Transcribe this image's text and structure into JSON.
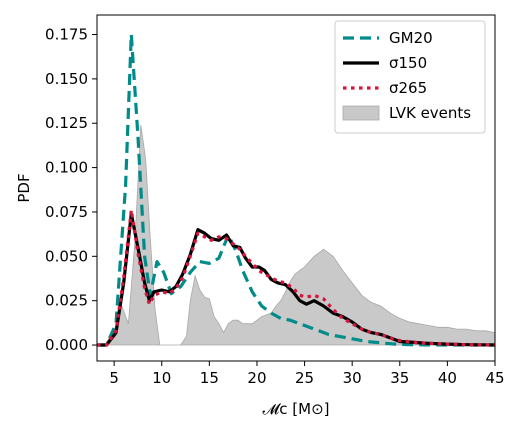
{
  "chart_data": {
    "type": "line",
    "xlabel": "𝓜c [M⊙]",
    "ylabel": "PDF",
    "xlim": [
      3.2,
      45
    ],
    "ylim": [
      -0.009,
      0.186
    ],
    "xticks": [
      5,
      10,
      15,
      20,
      25,
      30,
      35,
      40,
      45
    ],
    "yticks": [
      0.0,
      0.025,
      0.05,
      0.075,
      0.1,
      0.125,
      0.15,
      0.175
    ],
    "grid": false,
    "legend": {
      "placement": "top-right"
    },
    "series": [
      {
        "name": "GM20",
        "kind": "line",
        "style": "dashed",
        "color": "#008b8b",
        "x": [
          3.2,
          4.2,
          5.2,
          6.2,
          6.8,
          7.5,
          8.2,
          8.8,
          9.5,
          10.2,
          11.0,
          12.0,
          13.0,
          14.0,
          15.0,
          16.0,
          17.0,
          17.8,
          18.5,
          19.5,
          20.5,
          21.5,
          22.5,
          23.5,
          24.5,
          25.5,
          26.5,
          27.5,
          28.5,
          29.5,
          30.5,
          31.5,
          32.5,
          33.5,
          34.5,
          36.0,
          38.0,
          40.0,
          42.0,
          45.0
        ],
        "y": [
          0.0,
          0.0,
          0.012,
          0.09,
          0.175,
          0.118,
          0.05,
          0.028,
          0.047,
          0.041,
          0.029,
          0.033,
          0.041,
          0.047,
          0.046,
          0.049,
          0.062,
          0.053,
          0.042,
          0.03,
          0.022,
          0.018,
          0.015,
          0.014,
          0.012,
          0.01,
          0.008,
          0.006,
          0.005,
          0.004,
          0.003,
          0.002,
          0.0015,
          0.001,
          0.0005,
          0.0002,
          0.0001,
          0.0,
          0.0,
          0.0
        ]
      },
      {
        "name": "σ150",
        "kind": "line",
        "style": "solid",
        "color": "#000000",
        "x": [
          3.2,
          4.2,
          5.2,
          6.0,
          6.8,
          7.5,
          8.2,
          8.7,
          9.2,
          10.0,
          10.8,
          11.5,
          12.2,
          13.0,
          13.8,
          14.5,
          15.2,
          16.0,
          16.8,
          17.5,
          18.2,
          18.8,
          19.5,
          20.2,
          20.8,
          21.5,
          22.2,
          23.0,
          23.8,
          24.5,
          25.2,
          26.0,
          27.0,
          28.0,
          29.0,
          30.0,
          31.0,
          32.0,
          33.0,
          34.0,
          35.0,
          36.5,
          38.0,
          40.0,
          42.0,
          45.0
        ],
        "y": [
          0.0,
          0.0,
          0.007,
          0.035,
          0.074,
          0.055,
          0.035,
          0.025,
          0.03,
          0.031,
          0.03,
          0.033,
          0.04,
          0.051,
          0.065,
          0.063,
          0.06,
          0.059,
          0.062,
          0.056,
          0.055,
          0.049,
          0.044,
          0.044,
          0.042,
          0.037,
          0.035,
          0.034,
          0.03,
          0.025,
          0.023,
          0.025,
          0.022,
          0.018,
          0.016,
          0.013,
          0.009,
          0.007,
          0.006,
          0.004,
          0.002,
          0.0015,
          0.001,
          0.0005,
          0.0002,
          0.0
        ]
      },
      {
        "name": "σ265",
        "kind": "line",
        "style": "dotted",
        "color": "#dc143c",
        "x": [
          3.2,
          4.2,
          5.2,
          6.0,
          6.8,
          7.5,
          8.2,
          8.7,
          9.2,
          10.0,
          10.8,
          11.5,
          12.2,
          13.0,
          13.8,
          14.5,
          15.2,
          16.0,
          16.8,
          17.5,
          18.2,
          18.8,
          19.5,
          20.2,
          20.8,
          21.5,
          22.2,
          23.0,
          23.8,
          24.5,
          25.2,
          26.0,
          27.0,
          28.0,
          29.0,
          30.0,
          31.0,
          32.0,
          33.0,
          34.0,
          35.0,
          36.5,
          38.0,
          40.0,
          42.0,
          45.0
        ],
        "y": [
          0.0,
          0.0,
          0.008,
          0.038,
          0.076,
          0.052,
          0.032,
          0.023,
          0.028,
          0.03,
          0.029,
          0.032,
          0.038,
          0.05,
          0.063,
          0.061,
          0.059,
          0.061,
          0.06,
          0.057,
          0.054,
          0.05,
          0.046,
          0.042,
          0.04,
          0.038,
          0.036,
          0.035,
          0.032,
          0.028,
          0.027,
          0.028,
          0.026,
          0.02,
          0.015,
          0.012,
          0.009,
          0.007,
          0.006,
          0.004,
          0.0025,
          0.0015,
          0.001,
          0.0005,
          0.0002,
          0.0
        ]
      },
      {
        "name": "LVK events",
        "kind": "area",
        "color": "#c9c9c9",
        "x": [
          3.2,
          4.0,
          5.0,
          5.8,
          6.5,
          7.2,
          7.8,
          8.3,
          8.8,
          9.3,
          9.8,
          10.3,
          10.8,
          11.5,
          12.0,
          12.6,
          13.0,
          13.5,
          14.0,
          14.5,
          15.0,
          15.5,
          16.0,
          16.5,
          17.0,
          17.5,
          18.0,
          18.5,
          19.0,
          19.5,
          20.0,
          20.5,
          21.0,
          21.5,
          22.0,
          22.5,
          23.0,
          23.5,
          24.0,
          24.5,
          25.0,
          25.5,
          26.0,
          26.5,
          27.0,
          27.5,
          28.0,
          28.5,
          29.0,
          30.0,
          31.0,
          32.0,
          33.0,
          34.0,
          35.0,
          36.0,
          37.0,
          38.0,
          39.0,
          40.0,
          41.0,
          42.0,
          43.0,
          44.0,
          45.0
        ],
        "y": [
          0.0,
          0.0,
          0.008,
          0.022,
          0.012,
          0.06,
          0.124,
          0.105,
          0.06,
          0.02,
          0.0,
          0.0,
          0.0,
          0.0,
          0.0,
          0.005,
          0.025,
          0.039,
          0.031,
          0.027,
          0.026,
          0.016,
          0.012,
          0.007,
          0.012,
          0.014,
          0.014,
          0.012,
          0.012,
          0.012,
          0.014,
          0.016,
          0.017,
          0.018,
          0.022,
          0.025,
          0.03,
          0.036,
          0.04,
          0.042,
          0.044,
          0.047,
          0.05,
          0.052,
          0.054,
          0.052,
          0.05,
          0.046,
          0.042,
          0.035,
          0.028,
          0.024,
          0.022,
          0.018,
          0.015,
          0.013,
          0.012,
          0.011,
          0.01,
          0.01,
          0.009,
          0.009,
          0.008,
          0.008,
          0.007
        ]
      }
    ]
  }
}
